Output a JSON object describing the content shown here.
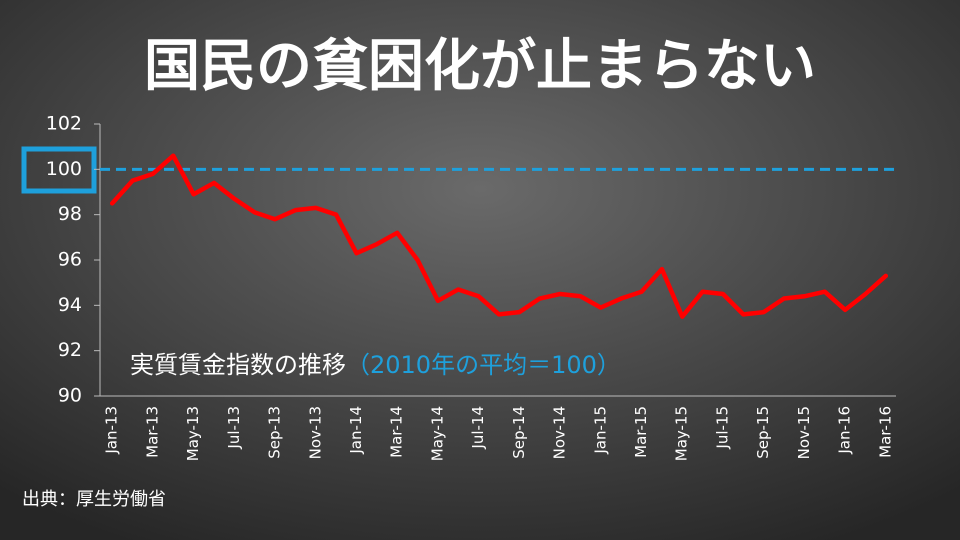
{
  "chart_data": {
    "type": "line",
    "title": "国民の貧困化が止まらない",
    "annotation": "実質賃金指数の推移",
    "annotation_note": "（2010年の平均＝100）",
    "source": "出典：厚生労働省",
    "categories": [
      "Jan-13",
      null,
      "Mar-13",
      null,
      "May-13",
      null,
      "Jul-13",
      null,
      "Sep-13",
      null,
      "Nov-13",
      null,
      "Jan-14",
      null,
      "Mar-14",
      null,
      "May-14",
      null,
      "Jul-14",
      null,
      "Sep-14",
      null,
      "Nov-14",
      null,
      "Jan-15",
      null,
      "Mar-15",
      null,
      "May-15",
      null,
      "Jul-15",
      null,
      "Sep-15",
      null,
      "Nov-15",
      null,
      "Jan-16",
      null,
      "Mar-16"
    ],
    "values": [
      98.5,
      99.5,
      99.8,
      100.6,
      98.9,
      99.4,
      98.7,
      98.1,
      97.8,
      98.2,
      98.3,
      98.0,
      96.3,
      96.7,
      97.2,
      96.0,
      94.2,
      94.7,
      94.4,
      93.6,
      93.7,
      94.3,
      94.5,
      94.4,
      93.9,
      94.3,
      94.6,
      95.6,
      93.5,
      94.6,
      94.5,
      93.6,
      93.7,
      94.3,
      94.4,
      94.6,
      93.8,
      94.5,
      95.3
    ],
    "color": "#ff0000",
    "reference_line": 100,
    "reference_color": "#1ea0dc",
    "ylim": [
      90,
      102
    ],
    "yticks": [
      90,
      92,
      94,
      96,
      98,
      100,
      102
    ]
  }
}
